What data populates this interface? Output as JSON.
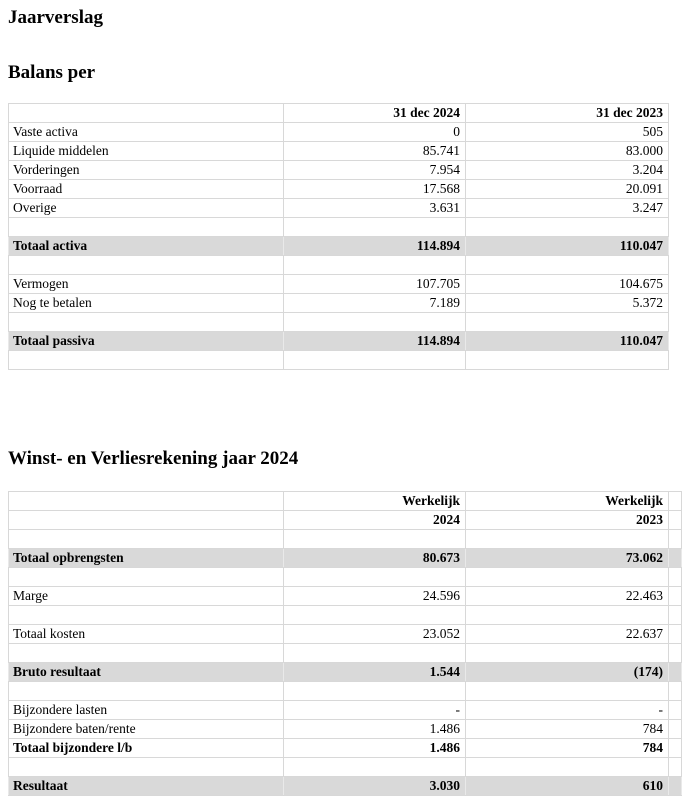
{
  "document": {
    "title": "Jaarverslag"
  },
  "colors": {
    "background": "#ffffff",
    "text": "#000000",
    "highlight_fill": "#d9d9d9",
    "gridline": "#d8d8d8"
  },
  "balans": {
    "heading": "Balans per",
    "columns": {
      "label": "",
      "col_2024": "31 dec 2024",
      "col_2023": "31 dec 2023"
    },
    "rows": [
      {
        "label": "Vaste activa",
        "y2024": "0",
        "y2023": "505",
        "variant": "normal"
      },
      {
        "label": "Liquide middelen",
        "y2024": "85.741",
        "y2023": "83.000",
        "variant": "normal"
      },
      {
        "label": "Vorderingen",
        "y2024": "7.954",
        "y2023": "3.204",
        "variant": "normal"
      },
      {
        "label": "Voorraad",
        "y2024": "17.568",
        "y2023": "20.091",
        "variant": "normal"
      },
      {
        "label": "Overige",
        "y2024": "3.631",
        "y2023": "3.247",
        "variant": "normal"
      },
      {
        "label": "",
        "y2024": "",
        "y2023": "",
        "variant": "empty"
      },
      {
        "label": "Totaal activa",
        "y2024": "114.894",
        "y2023": "110.047",
        "variant": "total"
      },
      {
        "label": "",
        "y2024": "",
        "y2023": "",
        "variant": "empty"
      },
      {
        "label": "Vermogen",
        "y2024": "107.705",
        "y2023": "104.675",
        "variant": "normal"
      },
      {
        "label": "Nog te betalen",
        "y2024": "7.189",
        "y2023": "5.372",
        "variant": "normal"
      },
      {
        "label": "",
        "y2024": "",
        "y2023": "",
        "variant": "empty"
      },
      {
        "label": "Totaal passiva",
        "y2024": "114.894",
        "y2023": "110.047",
        "variant": "total"
      },
      {
        "label": "",
        "y2024": "",
        "y2023": "",
        "variant": "empty"
      }
    ]
  },
  "winst_verlies": {
    "heading": "Winst- en Verliesrekening jaar 2024",
    "header_rows": [
      {
        "label": "",
        "y2024": "Werkelijk",
        "y2023": "Werkelijk"
      },
      {
        "label": "",
        "y2024": "2024",
        "y2023": "2023"
      }
    ],
    "rows": [
      {
        "label": "",
        "y2024": "",
        "y2023": "",
        "variant": "empty"
      },
      {
        "label": "Totaal opbrengsten",
        "y2024": "80.673",
        "y2023": "73.062",
        "variant": "total"
      },
      {
        "label": "",
        "y2024": "",
        "y2023": "",
        "variant": "empty"
      },
      {
        "label": "Marge",
        "y2024": "24.596",
        "y2023": "22.463",
        "variant": "normal"
      },
      {
        "label": "",
        "y2024": "",
        "y2023": "",
        "variant": "empty"
      },
      {
        "label": "Totaal kosten",
        "y2024": "23.052",
        "y2023": "22.637",
        "variant": "normal"
      },
      {
        "label": "",
        "y2024": "",
        "y2023": "",
        "variant": "empty"
      },
      {
        "label": "Bruto resultaat",
        "y2024": "1.544",
        "y2023": "(174)",
        "variant": "total"
      },
      {
        "label": "",
        "y2024": "",
        "y2023": "",
        "variant": "empty"
      },
      {
        "label": "Bijzondere lasten",
        "y2024": "-",
        "y2023": "-",
        "variant": "normal"
      },
      {
        "label": "Bijzondere baten/rente",
        "y2024": "1.486",
        "y2023": "784",
        "variant": "normal"
      },
      {
        "label": "Totaal bijzondere l/b",
        "y2024": "1.486",
        "y2023": "784",
        "variant": "bold"
      },
      {
        "label": "",
        "y2024": "",
        "y2023": "",
        "variant": "empty"
      },
      {
        "label": "Resultaat",
        "y2024": "3.030",
        "y2023": "610",
        "variant": "total"
      }
    ]
  }
}
